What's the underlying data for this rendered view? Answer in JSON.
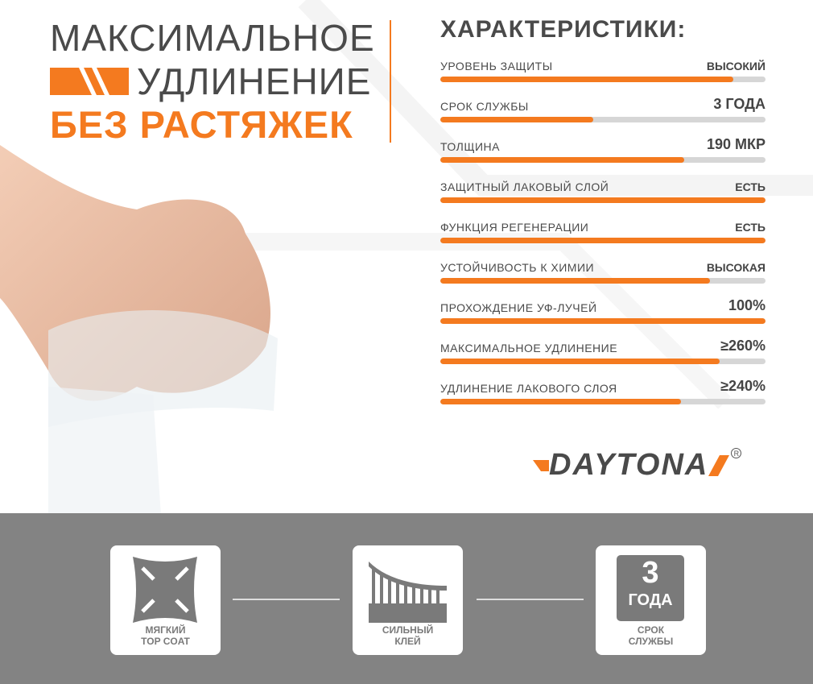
{
  "headline": {
    "line1": "МАКСИМАЛЬНОЕ",
    "line2": "УДЛИНЕНИЕ",
    "line3": "БЕЗ РАСТЯЖЕК"
  },
  "specs": {
    "title": "ХАРАКТЕРИСТИКИ:",
    "items": [
      {
        "label": "УРОВЕНЬ ЗАЩИТЫ",
        "value": "ВЫСОКИЙ",
        "level": 0.9
      },
      {
        "label": "СРОК СЛУЖБЫ",
        "value": "3 ГОДА",
        "level": 0.47
      },
      {
        "label": "ТОЛЩИНА",
        "value": "190 МКР",
        "level": 0.75
      },
      {
        "label": "ЗАЩИТНЫЙ ЛАКОВЫЙ СЛОЙ",
        "value": "ЕСТЬ",
        "level": 1.0
      },
      {
        "label": "ФУНКЦИЯ РЕГЕНЕРАЦИИ",
        "value": "ЕСТЬ",
        "level": 1.0
      },
      {
        "label": "УСТОЙЧИВОСТЬ К ХИМИИ",
        "value": "ВЫСОКАЯ",
        "level": 0.83
      },
      {
        "label": "ПРОХОЖДЕНИЕ УФ-ЛУЧЕЙ",
        "value": "100%",
        "level": 1.0
      },
      {
        "label": "МАКСИМАЛЬНОЕ УДЛИНЕНИЕ",
        "value": "≥260%",
        "level": 0.86
      },
      {
        "label": "УДЛИНЕНИЕ ЛАКОВОГО СЛОЯ",
        "value": "≥240%",
        "level": 0.74
      }
    ]
  },
  "logo": {
    "text": "DAYTONA",
    "reg": "R"
  },
  "features": [
    {
      "icon": "stretch-arrows-icon",
      "line1": "МЯГКИЙ",
      "line2": "TOP COAT"
    },
    {
      "icon": "adhesive-icon",
      "line1": "СИЛЬНЫЙ",
      "line2": "КЛЕЙ"
    },
    {
      "icon": "badge-3-years-icon",
      "line1": "СРОК",
      "line2": "СЛУЖБЫ",
      "badge_num": "3",
      "badge_unit": "ГОДА"
    }
  ],
  "colors": {
    "accent": "#f47a1f",
    "text": "#4a4a4a",
    "band": "#838383",
    "track": "#d6d6d6"
  }
}
